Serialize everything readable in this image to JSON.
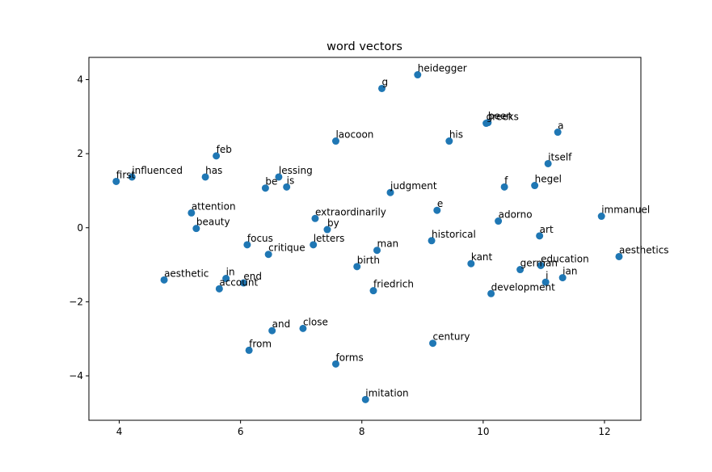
{
  "chart_data": {
    "type": "scatter",
    "title": "word vectors",
    "xlabel": "",
    "ylabel": "",
    "xlim": [
      3.5,
      12.6
    ],
    "ylim": [
      -5.2,
      4.6
    ],
    "xticks": [
      4,
      6,
      8,
      10,
      12
    ],
    "yticks": [
      -4,
      -2,
      0,
      2,
      4
    ],
    "grid": false,
    "marker_color": "#1f77b4",
    "points": [
      {
        "label": "heidegger",
        "x": 8.92,
        "y": 4.13
      },
      {
        "label": "g",
        "x": 8.33,
        "y": 3.76
      },
      {
        "label": "greeks",
        "x": 10.05,
        "y": 2.82
      },
      {
        "label": "been",
        "x": 10.08,
        "y": 2.84
      },
      {
        "label": "a",
        "x": 11.23,
        "y": 2.58
      },
      {
        "label": "laocoon",
        "x": 7.57,
        "y": 2.34
      },
      {
        "label": "his",
        "x": 9.44,
        "y": 2.34
      },
      {
        "label": "feb",
        "x": 5.6,
        "y": 1.94
      },
      {
        "label": "itself",
        "x": 11.07,
        "y": 1.73
      },
      {
        "label": "first",
        "x": 3.95,
        "y": 1.25
      },
      {
        "label": "influenced",
        "x": 4.21,
        "y": 1.37
      },
      {
        "label": "has",
        "x": 5.42,
        "y": 1.37
      },
      {
        "label": "lessing",
        "x": 6.63,
        "y": 1.37
      },
      {
        "label": "be",
        "x": 6.41,
        "y": 1.07
      },
      {
        "label": "is",
        "x": 6.76,
        "y": 1.1
      },
      {
        "label": "f",
        "x": 10.35,
        "y": 1.1
      },
      {
        "label": "hegel",
        "x": 10.85,
        "y": 1.14
      },
      {
        "label": "judgment",
        "x": 8.47,
        "y": 0.95
      },
      {
        "label": "attention",
        "x": 5.19,
        "y": 0.4
      },
      {
        "label": "e",
        "x": 9.24,
        "y": 0.47
      },
      {
        "label": "extraordinarily",
        "x": 7.23,
        "y": 0.25
      },
      {
        "label": "adorno",
        "x": 10.25,
        "y": 0.18
      },
      {
        "label": "immanuel",
        "x": 11.95,
        "y": 0.31
      },
      {
        "label": "beauty",
        "x": 5.27,
        "y": -0.02
      },
      {
        "label": "by",
        "x": 7.43,
        "y": -0.05
      },
      {
        "label": "art",
        "x": 10.93,
        "y": -0.22
      },
      {
        "label": "focus",
        "x": 6.11,
        "y": -0.46
      },
      {
        "label": "letters",
        "x": 7.2,
        "y": -0.46
      },
      {
        "label": "historical",
        "x": 9.15,
        "y": -0.35
      },
      {
        "label": "man",
        "x": 8.25,
        "y": -0.61
      },
      {
        "label": "critique",
        "x": 6.46,
        "y": -0.72
      },
      {
        "label": "aesthetics",
        "x": 12.24,
        "y": -0.78
      },
      {
        "label": "kant",
        "x": 9.8,
        "y": -0.97
      },
      {
        "label": "birth",
        "x": 7.92,
        "y": -1.05
      },
      {
        "label": "german",
        "x": 10.61,
        "y": -1.13
      },
      {
        "label": "education",
        "x": 10.95,
        "y": -1.02
      },
      {
        "label": "aesthetic",
        "x": 4.74,
        "y": -1.41
      },
      {
        "label": "in",
        "x": 5.76,
        "y": -1.37
      },
      {
        "label": "end",
        "x": 6.05,
        "y": -1.49
      },
      {
        "label": "ian",
        "x": 11.31,
        "y": -1.35
      },
      {
        "label": "i",
        "x": 11.03,
        "y": -1.47
      },
      {
        "label": "account",
        "x": 5.65,
        "y": -1.65
      },
      {
        "label": "friedrich",
        "x": 8.19,
        "y": -1.7
      },
      {
        "label": "development",
        "x": 10.13,
        "y": -1.78
      },
      {
        "label": "and",
        "x": 6.52,
        "y": -2.78
      },
      {
        "label": "close",
        "x": 7.03,
        "y": -2.72
      },
      {
        "label": "century",
        "x": 9.17,
        "y": -3.12
      },
      {
        "label": "from",
        "x": 6.14,
        "y": -3.31
      },
      {
        "label": "forms",
        "x": 7.57,
        "y": -3.68
      },
      {
        "label": "imitation",
        "x": 8.06,
        "y": -4.64
      }
    ]
  }
}
